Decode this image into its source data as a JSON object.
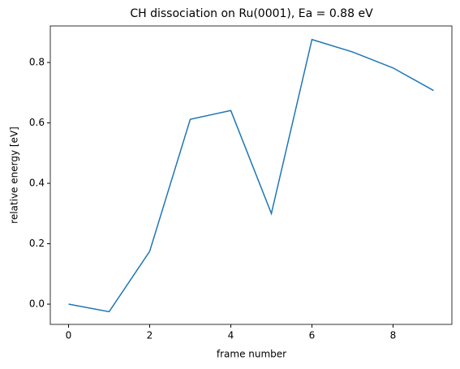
{
  "chart_data": {
    "type": "line",
    "title": "CH dissociation on Ru(0001), Ea = 0.88 eV",
    "x_label": "frame number",
    "y_label": "relative energy [eV]",
    "x": [
      0,
      1,
      2,
      3,
      4,
      5,
      6,
      7,
      8,
      9
    ],
    "series": [
      {
        "name": "energy",
        "color": "#1f77b4",
        "values": [
          0,
          -0.025,
          0.175,
          0.612,
          0.641,
          0.3,
          0.876,
          0.835,
          0.782,
          0.707
        ]
      }
    ],
    "xlim": [
      -0.45,
      9.45
    ],
    "xticks": [
      0,
      2,
      4,
      6,
      8
    ],
    "ylim": [
      -0.067,
      0.921
    ],
    "yticks": [
      {
        "value": 0,
        "label": "0.0"
      },
      0.2,
      0.4,
      0.6,
      0.8
    ]
  }
}
